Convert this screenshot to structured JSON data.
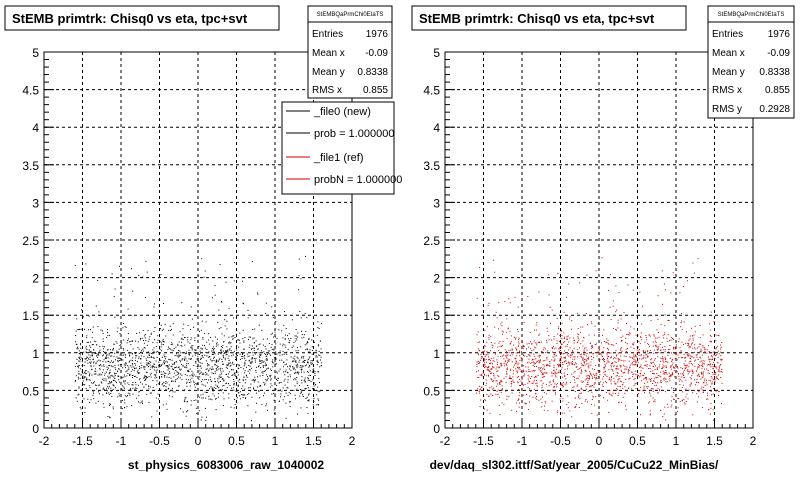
{
  "panels": [
    {
      "title": "StEMB primtrk: Chisq0 vs eta, tpc+svt",
      "xlabel": "st_physics_6083006_raw_1040002",
      "marker_color": "#000000",
      "stats": {
        "header": "StEMBQaPrmChi0EtaTS",
        "rows": [
          {
            "k": "Entries",
            "v": "1976"
          },
          {
            "k": "Mean x",
            "v": "-0.09"
          },
          {
            "k": "Mean y",
            "v": "0.8338"
          },
          {
            "k": "RMS x",
            "v": "0.855"
          }
        ]
      },
      "legend": [
        {
          "label": "_file0 (new)",
          "color": "#000000"
        },
        {
          "label": "prob = 1.000000",
          "color": "#000000"
        },
        {
          "label": "_file1 (ref)",
          "color": "#cc0000"
        },
        {
          "label": "probN = 1.000000",
          "color": "#cc0000"
        }
      ]
    },
    {
      "title": "StEMB primtrk: Chisq0 vs eta, tpc+svt",
      "xlabel": "dev/daq_sl302.ittf/Sat/year_2005/CuCu22_MinBias/",
      "marker_color": "#cc0000",
      "stats": {
        "header": "StEMBQaPrmChi0EtaTS",
        "rows": [
          {
            "k": "Entries",
            "v": "1976"
          },
          {
            "k": "Mean x",
            "v": "-0.09"
          },
          {
            "k": "Mean y",
            "v": "0.8338"
          },
          {
            "k": "RMS x",
            "v": "0.855"
          },
          {
            "k": "RMS y",
            "v": "0.2928"
          }
        ]
      }
    }
  ],
  "chart_data": [
    {
      "type": "scatter",
      "title": "StEMB primtrk: Chisq0 vs eta, tpc+svt",
      "xlabel": "st_physics_6083006_raw_1040002",
      "ylabel": "",
      "xlim": [
        -2,
        2
      ],
      "ylim": [
        0,
        5
      ],
      "xticks": [
        -2,
        -1.5,
        -1,
        -0.5,
        0,
        0.5,
        1,
        1.5,
        2
      ],
      "yticks": [
        0,
        0.5,
        1,
        1.5,
        2,
        2.5,
        3,
        3.5,
        4,
        4.5,
        5
      ],
      "grid": true,
      "entries": 1976,
      "mean_x": -0.09,
      "mean_y": 0.8338,
      "rms_x": 0.855,
      "series": [
        {
          "name": "_file0 (new)",
          "color": "#000000",
          "summary": "dense band of points for eta in [-1.6, 1.6], chisq0 mostly 0.3-1.3, tail up to ~2.3"
        }
      ]
    },
    {
      "type": "scatter",
      "title": "StEMB primtrk: Chisq0 vs eta, tpc+svt",
      "xlabel": "dev/daq_sl302.ittf/Sat/year_2005/CuCu22_MinBias/",
      "ylabel": "",
      "xlim": [
        -2,
        2
      ],
      "ylim": [
        0,
        5
      ],
      "xticks": [
        -2,
        -1.5,
        -1,
        -0.5,
        0,
        0.5,
        1,
        1.5,
        2
      ],
      "yticks": [
        0,
        0.5,
        1,
        1.5,
        2,
        2.5,
        3,
        3.5,
        4,
        4.5,
        5
      ],
      "grid": true,
      "entries": 1976,
      "mean_x": -0.09,
      "mean_y": 0.8338,
      "rms_x": 0.855,
      "rms_y": 0.2928,
      "series": [
        {
          "name": "_file1 (ref)",
          "color": "#cc0000",
          "summary": "dense band of points for eta in [-1.6, 1.6], chisq0 mostly 0.3-1.3, tail up to ~2.3"
        }
      ]
    }
  ]
}
